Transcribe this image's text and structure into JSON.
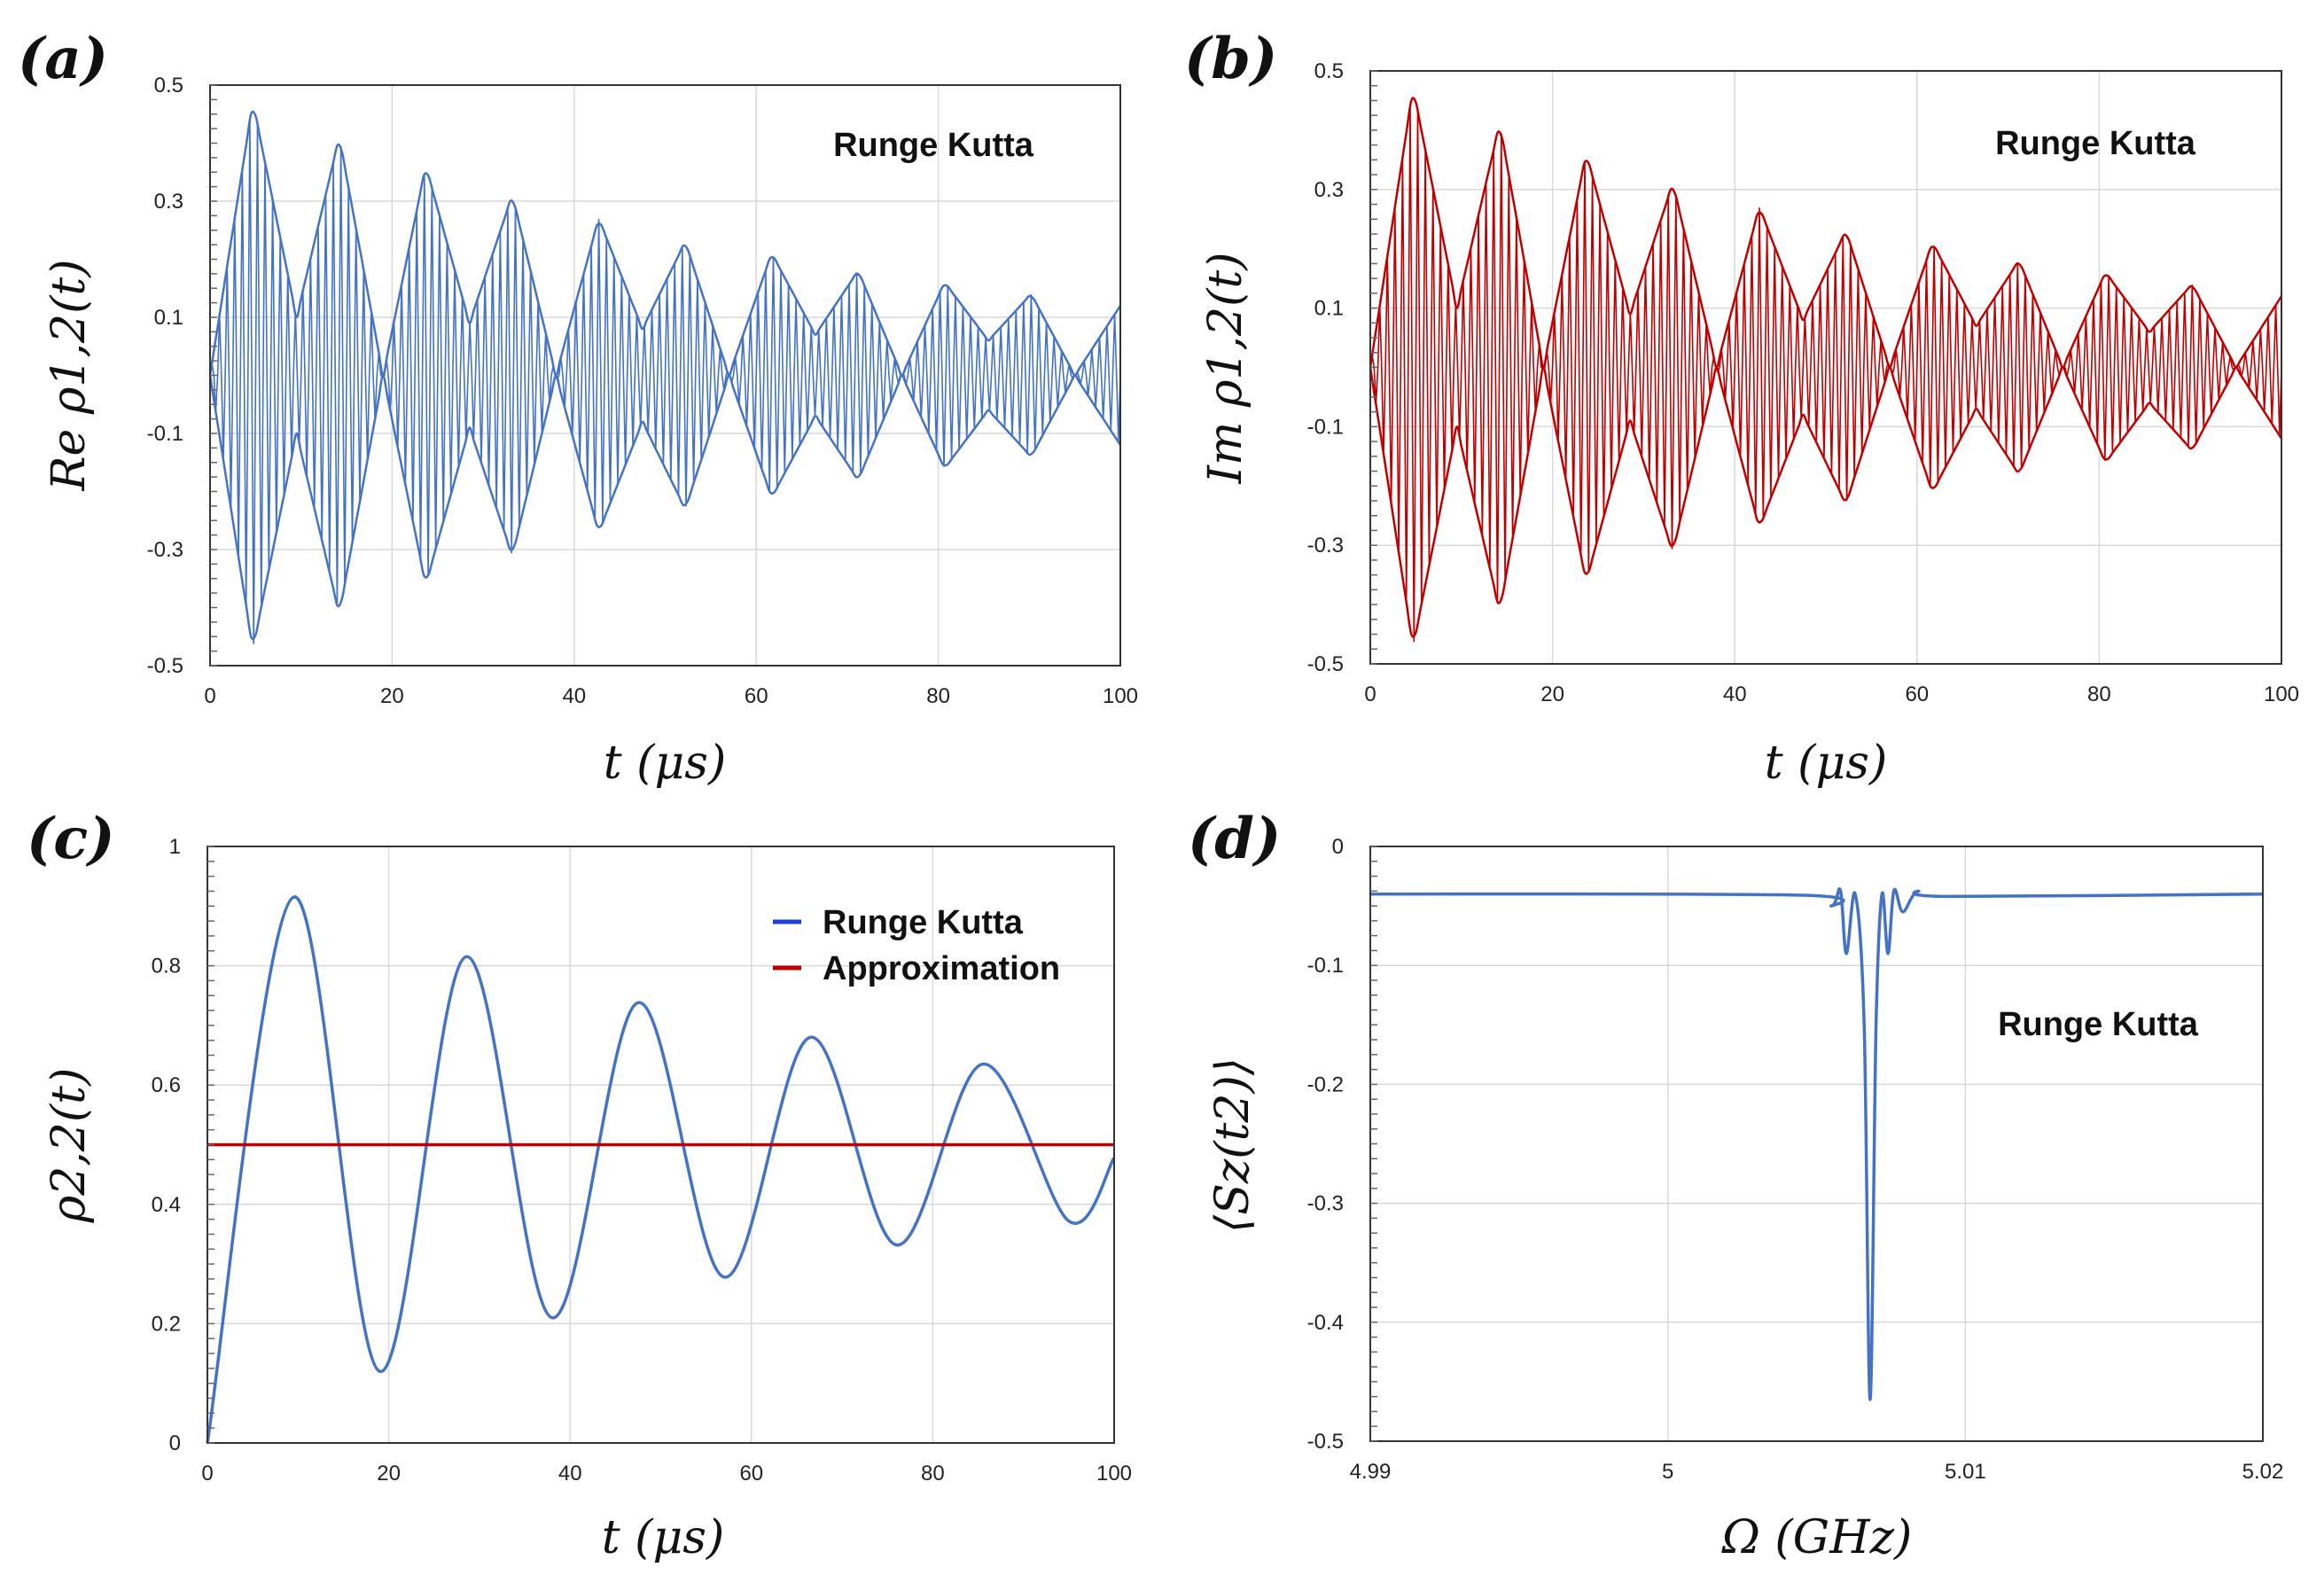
{
  "chart_data": [
    {
      "id": "a",
      "type": "line",
      "panel_label": "(a)",
      "ylabel": "Re ρ1,2(t)",
      "xlabel": "t (μs)",
      "annotation": "Runge Kutta",
      "xlim": [
        0,
        100
      ],
      "ylim": [
        -0.5,
        0.5
      ],
      "xticks": [
        0,
        20,
        40,
        60,
        80,
        100
      ],
      "yticks": [
        0.5,
        0.3,
        0.1,
        -0.1,
        -0.3,
        -0.5
      ],
      "ytick_labels": [
        "0.5",
        "0.3",
        "0.1",
        "-0.1",
        "-0.3",
        "-0.5"
      ],
      "color": "#4472c4",
      "series": [
        {
          "kind": "fast-oscillation envelope",
          "x": [
            0,
            4.7,
            9.5,
            14.2,
            19,
            23.7,
            28.5,
            33.2,
            38,
            42.7,
            47.5,
            52.2,
            57,
            61.7,
            66.5,
            71.2,
            76,
            80.7,
            85.5,
            90.2,
            95,
            100
          ],
          "y": [
            0,
            0.47,
            0.1,
            0.41,
            0,
            0.36,
            0.09,
            0.31,
            0,
            0.27,
            0.08,
            0.23,
            0,
            0.21,
            0.07,
            0.18,
            0,
            0.16,
            0.06,
            0.14,
            0,
            0.12
          ]
        }
      ]
    },
    {
      "id": "b",
      "type": "line",
      "panel_label": "(b)",
      "ylabel": "Im ρ1,2(t)",
      "xlabel": "t (μs)",
      "annotation": "Runge Kutta",
      "xlim": [
        0,
        100
      ],
      "ylim": [
        -0.5,
        0.5
      ],
      "xticks": [
        0,
        20,
        40,
        60,
        80,
        100
      ],
      "yticks": [
        0.5,
        0.3,
        0.1,
        -0.1,
        -0.3,
        -0.5
      ],
      "ytick_labels": [
        "0.5",
        "0.3",
        "0.1",
        "-0.1",
        "-0.3",
        "-0.5"
      ],
      "color": "#c00000",
      "series": [
        {
          "kind": "fast-oscillation envelope",
          "x": [
            0,
            4.7,
            9.5,
            14.2,
            19,
            23.7,
            28.5,
            33.2,
            38,
            42.7,
            47.5,
            52.2,
            57,
            61.7,
            66.5,
            71.2,
            76,
            80.7,
            85.5,
            90.2,
            95,
            100
          ],
          "y": [
            0,
            0.47,
            0.1,
            0.41,
            0,
            0.36,
            0.09,
            0.31,
            0,
            0.27,
            0.08,
            0.23,
            0,
            0.21,
            0.07,
            0.18,
            0,
            0.16,
            0.06,
            0.14,
            0,
            0.12
          ]
        }
      ]
    },
    {
      "id": "c",
      "type": "line",
      "panel_label": "(c)",
      "ylabel": "ρ2,2(t)",
      "xlabel": "t (μs)",
      "xlim": [
        0,
        100
      ],
      "ylim": [
        0,
        1
      ],
      "xticks": [
        0,
        20,
        40,
        60,
        80,
        100
      ],
      "yticks": [
        1,
        0.8,
        0.6,
        0.4,
        0.2,
        0
      ],
      "ytick_labels": [
        "1",
        "0.8",
        "0.6",
        "0.4",
        "0.2",
        "0"
      ],
      "legend": {
        "placement": "top-right",
        "entries": [
          {
            "label": "Runge Kutta",
            "color": "#1f3fd6"
          },
          {
            "label": "Approximation",
            "color": "#c00000"
          }
        ]
      },
      "series": [
        {
          "name": "Runge Kutta",
          "color": "#4472c4",
          "x": [
            0,
            9.5,
            19,
            28.5,
            38,
            47.5,
            57,
            66.5,
            76,
            85.5,
            95,
            100
          ],
          "y": [
            0,
            0.915,
            0.12,
            0.815,
            0.21,
            0.738,
            0.278,
            0.68,
            0.332,
            0.635,
            0.372,
            0.478
          ]
        },
        {
          "name": "Approximation",
          "color": "#c00000",
          "x": [
            0,
            100
          ],
          "y": [
            0.5,
            0.5
          ]
        }
      ]
    },
    {
      "id": "d",
      "type": "line",
      "panel_label": "(d)",
      "ylabel": "⟨Sz(t2)⟩",
      "xlabel": "Ω (GHz)",
      "annotation": "Runge Kutta",
      "xlim": [
        4.99,
        5.02
      ],
      "ylim": [
        -0.5,
        0
      ],
      "xticks": [
        4.99,
        5,
        5.01,
        5.02
      ],
      "xtick_labels": [
        "4.99",
        "5",
        "5.01",
        "5.02"
      ],
      "yticks": [
        0,
        -0.1,
        -0.2,
        -0.3,
        -0.4,
        -0.5
      ],
      "ytick_labels": [
        "0",
        "-0.1",
        "-0.2",
        "-0.3",
        "-0.4",
        "-0.5"
      ],
      "series": [
        {
          "color": "#4472c4",
          "x": [
            4.99,
            5.0045,
            5.0055,
            5.0058,
            5.006,
            5.0063,
            5.0066,
            5.0068,
            5.007,
            5.0072,
            5.0074,
            5.0076,
            5.0079,
            5.0084,
            5.0094,
            5.02
          ],
          "y": [
            -0.04,
            -0.041,
            -0.05,
            -0.037,
            -0.09,
            -0.04,
            -0.15,
            -0.465,
            -0.15,
            -0.04,
            -0.09,
            -0.037,
            -0.055,
            -0.038,
            -0.042,
            -0.04
          ]
        }
      ]
    }
  ]
}
